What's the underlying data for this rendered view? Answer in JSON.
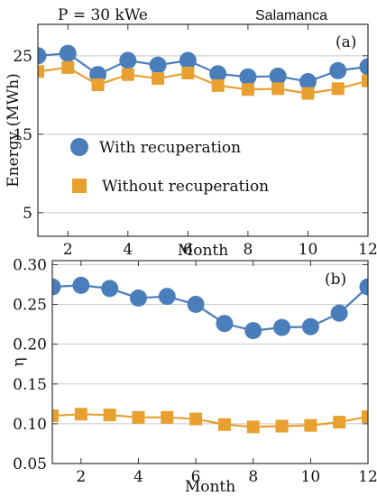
{
  "header": {
    "left": "P = 30 kWe",
    "right": "Salamanca"
  },
  "colors": {
    "blue": "#4a7ebb",
    "orange": "#e8a030",
    "grid": "#c8c8c8",
    "frame": "#333333"
  },
  "chart_data": [
    {
      "type": "line",
      "panel_label": "(a)",
      "xlabel": "Month",
      "ylabel": "Energy (MWh)",
      "xlim": [
        1,
        12
      ],
      "ylim": [
        2,
        29
      ],
      "x": [
        1,
        2,
        3,
        4,
        5,
        6,
        7,
        8,
        9,
        10,
        11,
        12
      ],
      "xticks": [
        "2",
        "4",
        "6",
        "8",
        "10",
        "12"
      ],
      "yticks": [
        "5",
        "15",
        "25"
      ],
      "grid": "horizontal",
      "legend": "inside, left",
      "series": [
        {
          "name": "With recuperation",
          "marker": "circle",
          "color": "#4a7ebb",
          "values": [
            25.0,
            25.3,
            22.6,
            24.4,
            23.8,
            24.4,
            22.7,
            22.3,
            22.4,
            21.7,
            23.1,
            23.6
          ]
        },
        {
          "name": "Without recuperation",
          "marker": "square",
          "color": "#e8a030",
          "values": [
            23.0,
            23.5,
            21.3,
            22.6,
            22.1,
            22.8,
            21.2,
            20.7,
            20.8,
            20.2,
            20.8,
            21.8
          ]
        }
      ]
    },
    {
      "type": "line",
      "panel_label": "(b)",
      "xlabel": "Month",
      "ylabel": "η",
      "xlim": [
        1,
        12
      ],
      "ylim": [
        0.05,
        0.305
      ],
      "x": [
        1,
        2,
        3,
        4,
        5,
        6,
        7,
        8,
        9,
        10,
        11,
        12
      ],
      "xticks": [
        "2",
        "4",
        "6",
        "8",
        "10",
        "12"
      ],
      "yticks": [
        "0.05",
        "0.10",
        "0.15",
        "0.20",
        "0.25",
        "0.30"
      ],
      "grid": "horizontal",
      "series": [
        {
          "marker": "circle",
          "color": "#4a7ebb",
          "values": [
            0.272,
            0.274,
            0.27,
            0.258,
            0.26,
            0.25,
            0.226,
            0.217,
            0.221,
            0.222,
            0.239,
            0.272
          ]
        },
        {
          "marker": "square",
          "color": "#e8a030",
          "values": [
            0.11,
            0.112,
            0.111,
            0.108,
            0.108,
            0.106,
            0.099,
            0.096,
            0.097,
            0.098,
            0.102,
            0.109
          ]
        }
      ]
    }
  ]
}
